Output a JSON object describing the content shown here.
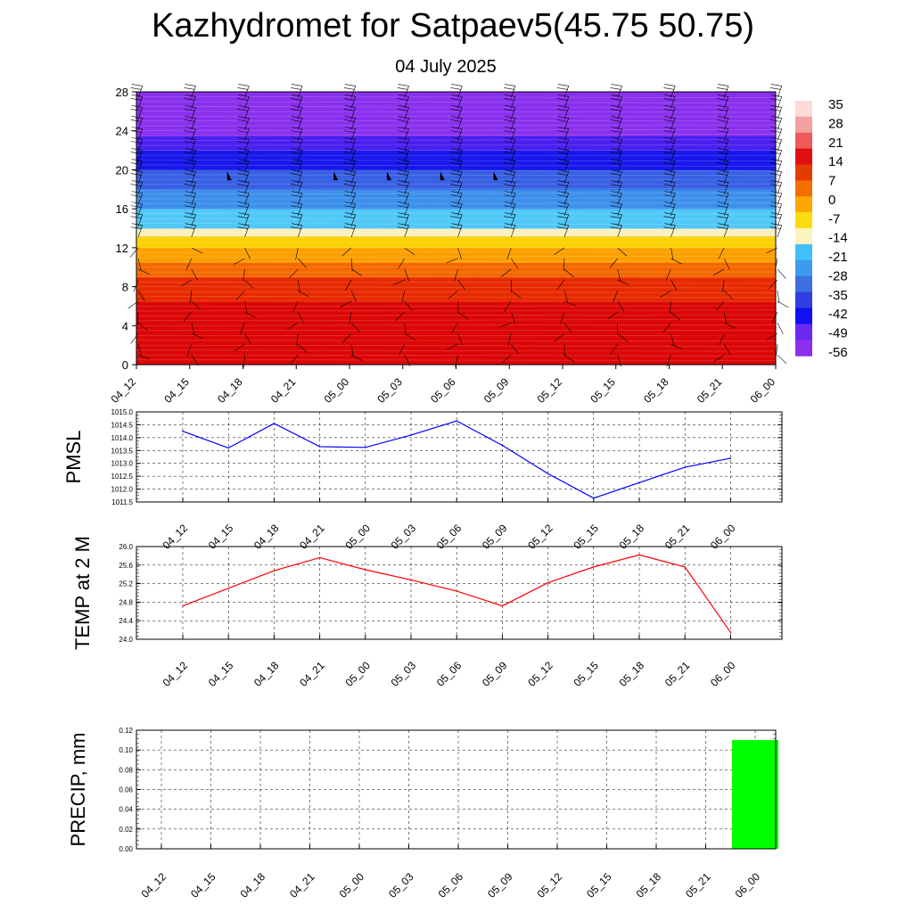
{
  "header": {
    "title": "Kazhydromet for Satpaev5(45.75 50.75)",
    "subtitle": "04 July 2025"
  },
  "colors": {
    "pmsl_line": "#0000ff",
    "temp_line": "#ff0000",
    "precip_bar": "#00ff00",
    "grid": "#000000"
  },
  "chart_data": [
    {
      "type": "heatmap",
      "title": "",
      "ylabel": "",
      "ylim": [
        0,
        28
      ],
      "y_ticks": [
        0,
        4,
        8,
        12,
        16,
        20,
        24,
        28
      ],
      "categories": [
        "04_12",
        "04_15",
        "04_18",
        "04_21",
        "05_00",
        "05_03",
        "05_06",
        "05_09",
        "05_12",
        "05_15",
        "05_18",
        "05_21",
        "06_00"
      ],
      "colorbar": {
        "labels": [
          "35",
          "28",
          "21",
          "14",
          "7",
          "0",
          "-7",
          "-14",
          "-21",
          "-28",
          "-35",
          "-42",
          "-49",
          "-56"
        ],
        "colors": [
          "#fcdada",
          "#f5a0a0",
          "#ec5a5a",
          "#e01010",
          "#e43c00",
          "#f46e00",
          "#fca800",
          "#fcdc10",
          "#fcf4c0",
          "#40c0f8",
          "#3c9cec",
          "#3c70e0",
          "#3040e0",
          "#1010f0",
          "#6a28f0",
          "#8c30ec"
        ]
      },
      "level_bands": [
        {
          "from": 0,
          "to": 6.5,
          "color": "#dc0606"
        },
        {
          "from": 6.5,
          "to": 9,
          "color": "#e82a00"
        },
        {
          "from": 9,
          "to": 10.5,
          "color": "#f46800"
        },
        {
          "from": 10.5,
          "to": 12,
          "color": "#fca000"
        },
        {
          "from": 12,
          "to": 13.2,
          "color": "#fcd000"
        },
        {
          "from": 13.2,
          "to": 14,
          "color": "#fcf0c0"
        },
        {
          "from": 14,
          "to": 16,
          "color": "#50c8f8"
        },
        {
          "from": 16,
          "to": 18,
          "color": "#3c90ec"
        },
        {
          "from": 18,
          "to": 20,
          "color": "#3860e4"
        },
        {
          "from": 20,
          "to": 22,
          "color": "#1818ec"
        },
        {
          "from": 22,
          "to": 23.5,
          "color": "#4a20f0"
        },
        {
          "from": 23.5,
          "to": 28,
          "color": "#8a30ee"
        }
      ]
    },
    {
      "type": "line",
      "title": "",
      "ylabel": "PMSL",
      "categories": [
        "04_12",
        "04_15",
        "04_18",
        "04_21",
        "05_00",
        "05_03",
        "05_06",
        "05_09",
        "05_12",
        "05_15",
        "05_18",
        "05_21",
        "06_00"
      ],
      "series": [
        {
          "values": [
            1014.25,
            1013.6,
            1014.55,
            1013.65,
            1013.62,
            1014.1,
            1014.65,
            1013.7,
            1012.6,
            1011.65,
            1012.25,
            1012.85,
            1013.2
          ]
        }
      ],
      "ylim": [
        1011.5,
        1015.0
      ],
      "y_ticks": [
        "1011.5",
        "1012.0",
        "1012.5",
        "1013.0",
        "1013.5",
        "1014.0",
        "1014.5",
        "1015.0"
      ]
    },
    {
      "type": "line",
      "title": "",
      "ylabel": "TEMP at 2 M",
      "categories": [
        "04_12",
        "04_15",
        "04_18",
        "04_21",
        "05_00",
        "05_03",
        "05_06",
        "05_09",
        "05_12",
        "05_15",
        "05_18",
        "05_21",
        "06_00"
      ],
      "series": [
        {
          "values": [
            24.72,
            25.1,
            25.48,
            25.76,
            25.5,
            25.28,
            25.04,
            24.72,
            25.22,
            25.56,
            25.82,
            25.56,
            24.15
          ]
        }
      ],
      "ylim": [
        24.0,
        26.0
      ],
      "y_ticks": [
        "24.0",
        "24.4",
        "24.8",
        "25.2",
        "25.6",
        "26.0"
      ]
    },
    {
      "type": "bar",
      "title": "",
      "ylabel": "PRECIP, mm",
      "categories": [
        "04_12",
        "04_15",
        "04_18",
        "04_21",
        "05_00",
        "05_03",
        "05_06",
        "05_09",
        "05_12",
        "05_15",
        "05_18",
        "05_21",
        "06_00"
      ],
      "values": [
        0,
        0,
        0,
        0,
        0,
        0,
        0,
        0,
        0,
        0,
        0,
        0,
        0.11
      ],
      "ylim": [
        0,
        0.12
      ],
      "y_ticks": [
        "0.00",
        "0.02",
        "0.04",
        "0.06",
        "0.08",
        "0.10",
        "0.12"
      ]
    }
  ]
}
